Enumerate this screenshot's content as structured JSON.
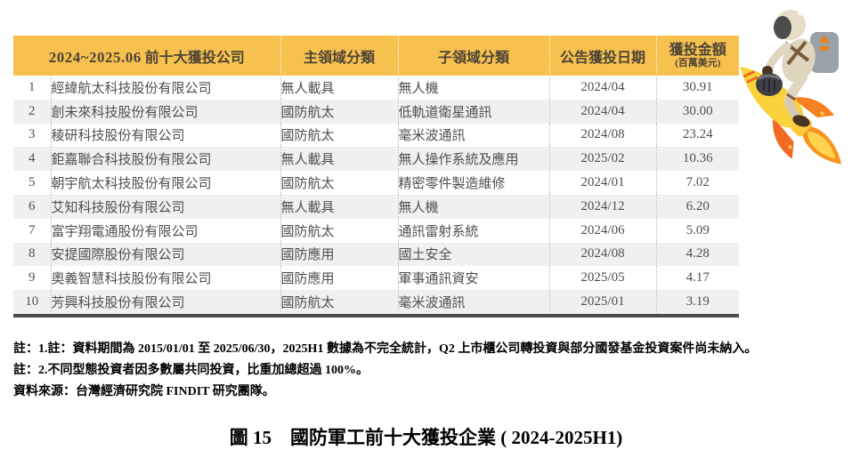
{
  "chart_data": {
    "type": "table",
    "title": "圖 15　國防軍工前十大獲投企業 ( 2024-2025H1)",
    "header": {
      "period": "2024~2025.06",
      "company": "前十大獲投公司",
      "main_category": "主領域分類",
      "sub_category": "子領域分類",
      "date": "公告獲投日期",
      "amount": "獲投金額",
      "amount_unit": "(百萬美元)"
    },
    "rows": [
      {
        "rank": "1",
        "company": "經緯航太科技股份有限公司",
        "main_category": "無人載具",
        "sub_category": "無人機",
        "date": "2024/04",
        "amount_musd": "30.91"
      },
      {
        "rank": "2",
        "company": "創未來科技股份有限公司",
        "main_category": "國防航太",
        "sub_category": "低軌道衛星通訊",
        "date": "2024/04",
        "amount_musd": "30.00"
      },
      {
        "rank": "3",
        "company": "稜研科技股份有限公司",
        "main_category": "國防航太",
        "sub_category": "毫米波通訊",
        "date": "2024/08",
        "amount_musd": "23.24"
      },
      {
        "rank": "4",
        "company": "鉅嘉聯合科技股份有限公司",
        "main_category": "無人載具",
        "sub_category": "無人操作系統及應用",
        "date": "2025/02",
        "amount_musd": "10.36"
      },
      {
        "rank": "5",
        "company": "朝宇航太科技股份有限公司",
        "main_category": "國防航太",
        "sub_category": "精密零件製造維修",
        "date": "2024/01",
        "amount_musd": "7.02"
      },
      {
        "rank": "6",
        "company": "艾知科技股份有限公司",
        "main_category": "無人載具",
        "sub_category": "無人機",
        "date": "2024/12",
        "amount_musd": "6.20"
      },
      {
        "rank": "7",
        "company": "富宇翔電通股份有限公司",
        "main_category": "國防航太",
        "sub_category": "通訊雷射系統",
        "date": "2024/06",
        "amount_musd": "5.09"
      },
      {
        "rank": "8",
        "company": "安提國際股份有限公司",
        "main_category": "國防應用",
        "sub_category": "國土安全",
        "date": "2024/08",
        "amount_musd": "4.28"
      },
      {
        "rank": "9",
        "company": "奧義智慧科技股份有限公司",
        "main_category": "國防應用",
        "sub_category": "軍事通訊資安",
        "date": "2025/05",
        "amount_musd": "4.17"
      },
      {
        "rank": "10",
        "company": "芳興科技股份有限公司",
        "main_category": "國防航太",
        "sub_category": "毫米波通訊",
        "date": "2025/01",
        "amount_musd": "3.19"
      }
    ]
  },
  "notes": {
    "note1": "註：1.註：資料期間為 2015/01/01 至 2025/06/30，2025H1 數據為不完全統計，Q2 上市櫃公司轉投資與部分國發基金投資案件尚未納入。",
    "note2": "註：2.不同型態投資者因多數屬共同投資，比重加總超過 100%。",
    "source": "資料來源：台灣經濟研究院 FINDIT 研究團隊。"
  },
  "caption": "圖 15　國防軍工前十大獲投企業 ( 2024-2025H1)",
  "colors": {
    "header_yellow": "#F6C14E",
    "row_stripe": "#F0F0F0",
    "table_bottom_border": "#4B4B4B",
    "rocket_yellow": "#F9D23C",
    "fin_orange": "#F26A22",
    "flame_orange": "#F7941D"
  },
  "illustration": {
    "name": "astronaut-riding-rocket"
  }
}
